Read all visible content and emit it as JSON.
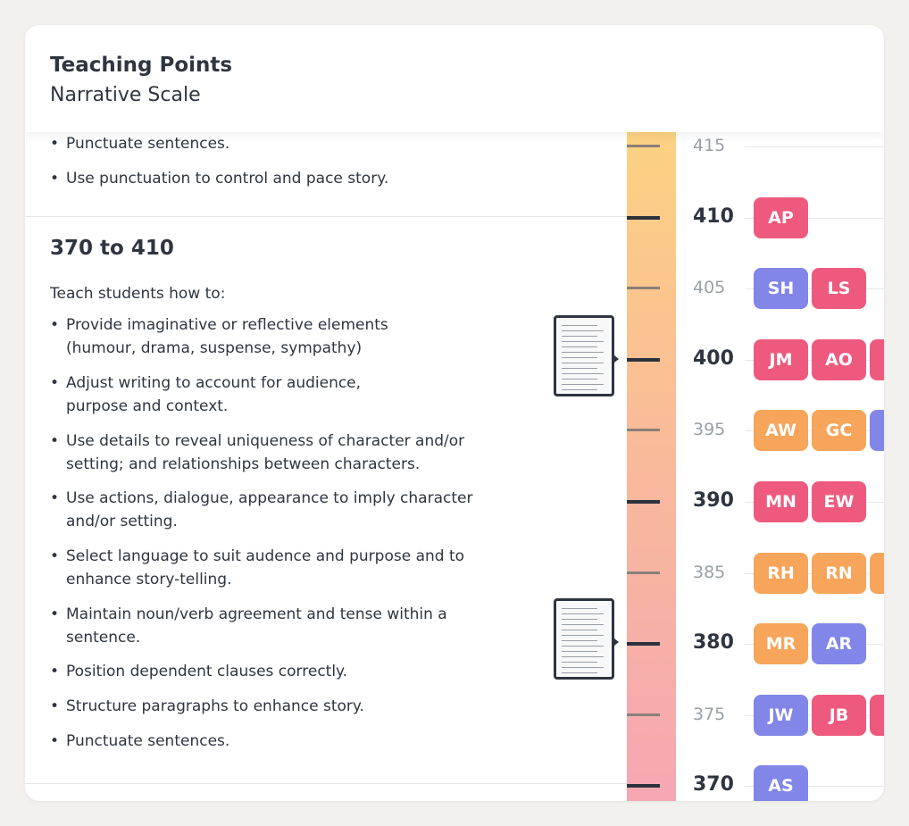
{
  "header": {
    "title": "Teaching Points",
    "subtitle": "Narrative Scale"
  },
  "colors": {
    "pink": "#ee5a7e",
    "orange": "#f6a55a",
    "purple": "#8186e8"
  },
  "top_section": {
    "bullets": [
      "Punctuate sentences.",
      "Use punctuation to control and pace story."
    ]
  },
  "range_section": {
    "title": "370 to 410",
    "intro": "Teach students how to:",
    "bullets": [
      "Provide imaginative or reflective elements (humour, drama, suspense, sympathy)",
      "Adjust writing to account for audience, purpose and context.",
      "Use details to reveal uniqueness of character and/or setting; and relationships between characters.",
      "Use actions, dialogue, appearance to imply character and/or setting.",
      "Select language to suit audence and purpose and to enhance story-telling.",
      "Maintain noun/verb agreement and tense within a sentence.",
      "Position dependent clauses correctly.",
      "Structure paragraphs to enhance story.",
      "Punctuate sentences."
    ]
  },
  "work_samples": [
    {
      "icon": "writing-sample-thumbnail",
      "score": 400
    },
    {
      "icon": "writing-sample-thumbnail",
      "score": 380
    }
  ],
  "scale": {
    "levels": [
      {
        "label": "415",
        "major": false,
        "students": []
      },
      {
        "label": "410",
        "major": true,
        "students": [
          {
            "initials": "AP",
            "color": "pink"
          }
        ]
      },
      {
        "label": "405",
        "major": false,
        "students": [
          {
            "initials": "SH",
            "color": "purple"
          },
          {
            "initials": "LS",
            "color": "pink"
          }
        ]
      },
      {
        "label": "400",
        "major": true,
        "students": [
          {
            "initials": "JM",
            "color": "pink"
          },
          {
            "initials": "AO",
            "color": "pink"
          },
          {
            "initials": "",
            "color": "pink"
          }
        ]
      },
      {
        "label": "395",
        "major": false,
        "students": [
          {
            "initials": "AW",
            "color": "orange"
          },
          {
            "initials": "GC",
            "color": "orange"
          },
          {
            "initials": "",
            "color": "purple"
          }
        ]
      },
      {
        "label": "390",
        "major": true,
        "students": [
          {
            "initials": "MN",
            "color": "pink"
          },
          {
            "initials": "EW",
            "color": "pink"
          }
        ]
      },
      {
        "label": "385",
        "major": false,
        "students": [
          {
            "initials": "RH",
            "color": "orange"
          },
          {
            "initials": "RN",
            "color": "orange"
          },
          {
            "initials": "",
            "color": "orange"
          }
        ]
      },
      {
        "label": "380",
        "major": true,
        "students": [
          {
            "initials": "MR",
            "color": "orange"
          },
          {
            "initials": "AR",
            "color": "purple"
          }
        ]
      },
      {
        "label": "375",
        "major": false,
        "students": [
          {
            "initials": "JW",
            "color": "purple"
          },
          {
            "initials": "JB",
            "color": "pink"
          },
          {
            "initials": "",
            "color": "pink"
          }
        ]
      },
      {
        "label": "370",
        "major": true,
        "students": [
          {
            "initials": "AS",
            "color": "purple"
          }
        ]
      }
    ]
  }
}
